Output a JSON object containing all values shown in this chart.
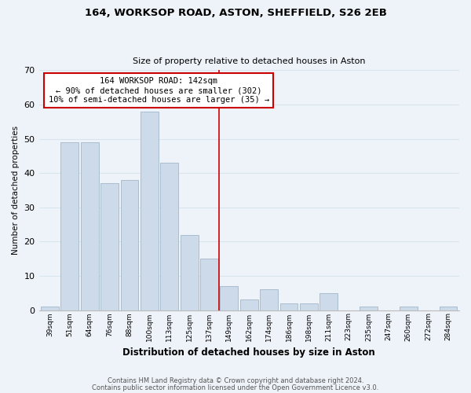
{
  "title1": "164, WORKSOP ROAD, ASTON, SHEFFIELD, S26 2EB",
  "title2": "Size of property relative to detached houses in Aston",
  "xlabel": "Distribution of detached houses by size in Aston",
  "ylabel": "Number of detached properties",
  "bar_labels": [
    "39sqm",
    "51sqm",
    "64sqm",
    "76sqm",
    "88sqm",
    "100sqm",
    "113sqm",
    "125sqm",
    "137sqm",
    "149sqm",
    "162sqm",
    "174sqm",
    "186sqm",
    "198sqm",
    "211sqm",
    "223sqm",
    "235sqm",
    "247sqm",
    "260sqm",
    "272sqm",
    "284sqm"
  ],
  "bar_values": [
    1,
    49,
    49,
    37,
    38,
    58,
    43,
    22,
    15,
    7,
    3,
    6,
    2,
    2,
    5,
    0,
    1,
    0,
    1,
    0,
    1
  ],
  "bar_color": "#ccdaea",
  "bar_edge_color": "#aabdcf",
  "grid_color": "#d8e4ee",
  "vline_x": 8.5,
  "vline_color": "#cc0000",
  "annotation_title": "164 WORKSOP ROAD: 142sqm",
  "annotation_line1": "← 90% of detached houses are smaller (302)",
  "annotation_line2": "10% of semi-detached houses are larger (35) →",
  "annotation_box_edge": "#cc0000",
  "footnote1": "Contains HM Land Registry data © Crown copyright and database right 2024.",
  "footnote2": "Contains public sector information licensed under the Open Government Licence v3.0.",
  "ylim": [
    0,
    70
  ],
  "background_color": "#eef3f9"
}
